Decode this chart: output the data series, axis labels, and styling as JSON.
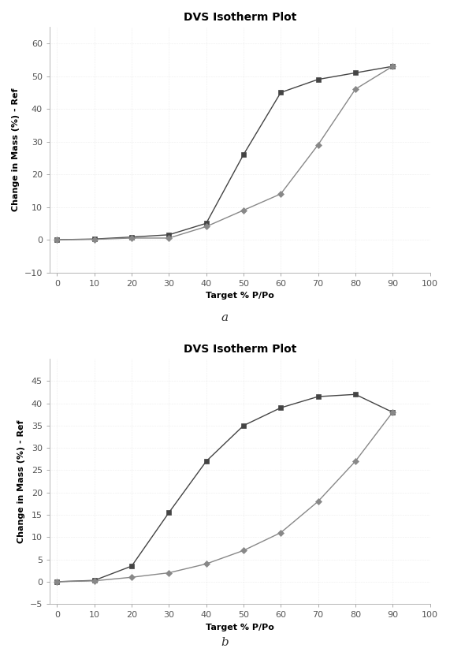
{
  "plot_a": {
    "title": "DVS Isotherm Plot",
    "xlabel": "Target % P/Po",
    "ylabel": "Change in Mass (%) - Ref",
    "adsorption_x": [
      0,
      10,
      20,
      30,
      40,
      50,
      60,
      70,
      80,
      90
    ],
    "adsorption_y": [
      0,
      0.2,
      0.8,
      1.5,
      5.0,
      26.0,
      45.0,
      49.0,
      51.0,
      53.0
    ],
    "desorption_x": [
      0,
      10,
      20,
      30,
      40,
      50,
      60,
      70,
      80,
      90
    ],
    "desorption_y": [
      0,
      0.1,
      0.5,
      0.5,
      4.0,
      9.0,
      14.0,
      29.0,
      46.0,
      53.0
    ],
    "ylim": [
      -10,
      65
    ],
    "xlim": [
      -2,
      100
    ],
    "yticks": [
      -10,
      0,
      10,
      20,
      30,
      40,
      50,
      60
    ],
    "xticks": [
      0,
      10,
      20,
      30,
      40,
      50,
      60,
      70,
      80,
      90,
      100
    ],
    "label": "a"
  },
  "plot_b": {
    "title": "DVS Isotherm Plot",
    "xlabel": "Target % P/Po",
    "ylabel": "Change in Mass (%) - Ref",
    "adsorption_x": [
      0,
      10,
      20,
      30,
      40,
      50,
      60,
      70,
      80,
      90
    ],
    "adsorption_y": [
      0,
      0.3,
      3.5,
      15.5,
      27.0,
      35.0,
      39.0,
      41.5,
      42.0,
      38.0
    ],
    "desorption_x": [
      0,
      10,
      20,
      30,
      40,
      50,
      60,
      70,
      80,
      90
    ],
    "desorption_y": [
      0,
      0.2,
      1.0,
      2.0,
      4.0,
      7.0,
      11.0,
      18.0,
      27.0,
      38.0
    ],
    "ylim": [
      -5,
      50
    ],
    "xlim": [
      -2,
      100
    ],
    "yticks": [
      -5,
      0,
      5,
      10,
      15,
      20,
      25,
      30,
      35,
      40,
      45
    ],
    "xticks": [
      0,
      10,
      20,
      30,
      40,
      50,
      60,
      70,
      80,
      90,
      100
    ],
    "label": "b"
  },
  "line_color_ads": "#444444",
  "line_color_des": "#888888",
  "marker_ads": "s",
  "marker_des": "D",
  "marker_size": 4,
  "line_width": 1.0,
  "bg_color": "#ffffff",
  "fig_bg_color": "#ffffff",
  "title_fontsize": 10,
  "label_fontsize": 8,
  "tick_fontsize": 8,
  "subplot_label_fontsize": 11
}
